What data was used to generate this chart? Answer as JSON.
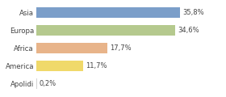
{
  "categories": [
    "Asia",
    "Europa",
    "Africa",
    "America",
    "Apolidi"
  ],
  "values": [
    35.8,
    34.6,
    17.7,
    11.7,
    0.2
  ],
  "labels": [
    "35,8%",
    "34,6%",
    "17,7%",
    "11,7%",
    "0,2%"
  ],
  "bar_colors": [
    "#7b9ec9",
    "#b5c98e",
    "#e8b48a",
    "#f0d96a",
    "#d3d3d3"
  ],
  "background_color": "#ffffff",
  "xlim": [
    0,
    46
  ],
  "label_fontsize": 6.0,
  "tick_fontsize": 6.2,
  "bar_height": 0.62
}
